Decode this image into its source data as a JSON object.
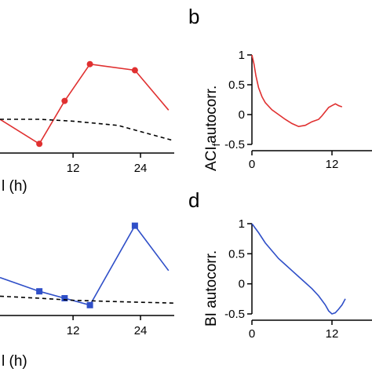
{
  "panels": {
    "a": {
      "xlabel_partial": "l (h)",
      "color": "#e03030",
      "marker": "circle"
    },
    "b": {
      "letter": "b",
      "ylabel_main": "ACI",
      "ylabel_sub": "f",
      "ylabel_rest": "autocorr.",
      "color": "#e03030"
    },
    "c": {
      "xlabel_partial": "l (h)",
      "color": "#2f4fc8",
      "marker": "square"
    },
    "d": {
      "letter": "d",
      "ylabel": "BI autocorr.",
      "color": "#2f4fc8"
    }
  },
  "chart_data": [
    {
      "panel": "a",
      "type": "line",
      "xlabel": "l (h)",
      "xticks": [
        12,
        24
      ],
      "xlim": [
        0,
        30
      ],
      "series": [
        {
          "values_x": [
            -1,
            6,
            10.5,
            15,
            23,
            29
          ],
          "values_y": [
            0.15,
            -0.25,
            0.45,
            1.05,
            0.95,
            0.3
          ],
          "style": "solid-markers"
        },
        {
          "values_x": [
            -1,
            6,
            12,
            20,
            30
          ],
          "values_y": [
            0.15,
            0.15,
            0.12,
            0.05,
            -0.2
          ],
          "style": "dashed"
        }
      ]
    },
    {
      "panel": "b",
      "type": "line",
      "ylabel": "ACIf autocorr.",
      "yticks": [
        1,
        0.5,
        0,
        -0.5
      ],
      "ytick_labels": [
        "1",
        "0.5",
        "0",
        "-0.5"
      ],
      "xticks": [
        0,
        12
      ],
      "xlim": [
        0,
        18
      ],
      "ylim": [
        -0.5,
        1
      ],
      "series": [
        {
          "x": [
            0,
            0.3,
            0.6,
            1,
            1.5,
            2,
            3,
            4,
            5,
            6,
            7,
            8,
            9,
            10,
            10.5,
            11,
            11.5,
            12,
            12.5,
            13,
            13.5
          ],
          "y": [
            1,
            0.85,
            0.65,
            0.45,
            0.3,
            0.2,
            0.08,
            0.0,
            -0.08,
            -0.15,
            -0.2,
            -0.18,
            -0.12,
            -0.08,
            -0.02,
            0.05,
            0.12,
            0.15,
            0.18,
            0.15,
            0.13
          ]
        }
      ]
    },
    {
      "panel": "c",
      "type": "line",
      "xlabel": "l (h)",
      "xticks": [
        12,
        24
      ],
      "xlim": [
        0,
        30
      ],
      "series": [
        {
          "values_x": [
            -1,
            6,
            10.5,
            15,
            23,
            29
          ],
          "values_y": [
            0.25,
            0.05,
            -0.05,
            -0.15,
            1.0,
            0.35
          ],
          "style": "solid-markers"
        },
        {
          "values_x": [
            -1,
            6,
            12,
            20,
            30
          ],
          "values_y": [
            -0.02,
            -0.05,
            -0.08,
            -0.1,
            -0.12
          ],
          "style": "dashed"
        }
      ]
    },
    {
      "panel": "d",
      "type": "line",
      "ylabel": "BI autocorr.",
      "yticks": [
        1,
        0.5,
        0,
        -0.5
      ],
      "ytick_labels": [
        "1",
        "0.5",
        "0",
        "-0.5"
      ],
      "xticks": [
        0,
        12
      ],
      "xlim": [
        0,
        18
      ],
      "ylim": [
        -0.5,
        1
      ],
      "series": [
        {
          "x": [
            0,
            1,
            2,
            3,
            4,
            5,
            6,
            7,
            8,
            9,
            10,
            11,
            11.5,
            12,
            12.5,
            13,
            13.5,
            14
          ],
          "y": [
            1,
            0.85,
            0.68,
            0.55,
            0.42,
            0.32,
            0.22,
            0.12,
            0.02,
            -0.08,
            -0.2,
            -0.35,
            -0.45,
            -0.5,
            -0.48,
            -0.42,
            -0.35,
            -0.25
          ]
        }
      ]
    }
  ]
}
